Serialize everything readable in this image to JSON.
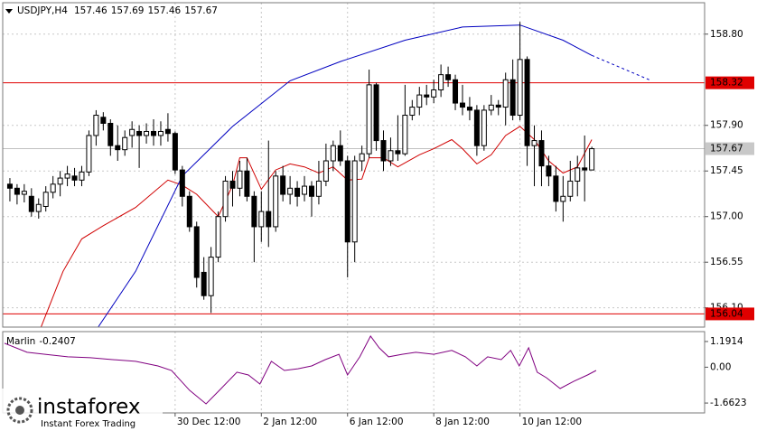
{
  "chart_data": {
    "type": "candlestick",
    "symbol": "USDJPY,H4",
    "candles": [
      {
        "o": 157.32,
        "h": 157.38,
        "l": 157.15,
        "c": 157.28
      },
      {
        "o": 157.28,
        "h": 157.32,
        "l": 157.12,
        "c": 157.22
      },
      {
        "o": 157.22,
        "h": 157.32,
        "l": 157.14,
        "c": 157.25
      },
      {
        "o": 157.2,
        "h": 157.28,
        "l": 157.0,
        "c": 157.05
      },
      {
        "o": 157.05,
        "h": 157.18,
        "l": 156.98,
        "c": 157.12
      },
      {
        "o": 157.1,
        "h": 157.3,
        "l": 157.05,
        "c": 157.24
      },
      {
        "o": 157.24,
        "h": 157.4,
        "l": 157.18,
        "c": 157.32
      },
      {
        "o": 157.32,
        "h": 157.45,
        "l": 157.2,
        "c": 157.38
      },
      {
        "o": 157.38,
        "h": 157.5,
        "l": 157.3,
        "c": 157.42
      },
      {
        "o": 157.4,
        "h": 157.48,
        "l": 157.3,
        "c": 157.36
      },
      {
        "o": 157.36,
        "h": 157.5,
        "l": 157.3,
        "c": 157.44
      },
      {
        "o": 157.44,
        "h": 157.85,
        "l": 157.4,
        "c": 157.8
      },
      {
        "o": 157.8,
        "h": 158.05,
        "l": 157.7,
        "c": 158.0
      },
      {
        "o": 157.98,
        "h": 158.03,
        "l": 157.85,
        "c": 157.92
      },
      {
        "o": 157.92,
        "h": 157.96,
        "l": 157.6,
        "c": 157.7
      },
      {
        "o": 157.7,
        "h": 157.9,
        "l": 157.55,
        "c": 157.66
      },
      {
        "o": 157.66,
        "h": 157.85,
        "l": 157.6,
        "c": 157.78
      },
      {
        "o": 157.8,
        "h": 157.94,
        "l": 157.68,
        "c": 157.86
      },
      {
        "o": 157.84,
        "h": 157.9,
        "l": 157.48,
        "c": 157.8
      },
      {
        "o": 157.8,
        "h": 157.92,
        "l": 157.72,
        "c": 157.84
      },
      {
        "o": 157.84,
        "h": 157.96,
        "l": 157.7,
        "c": 157.8
      },
      {
        "o": 157.8,
        "h": 157.94,
        "l": 157.7,
        "c": 157.84
      },
      {
        "o": 157.86,
        "h": 158.02,
        "l": 157.74,
        "c": 157.82
      },
      {
        "o": 157.82,
        "h": 157.84,
        "l": 157.42,
        "c": 157.46
      },
      {
        "o": 157.46,
        "h": 157.5,
        "l": 157.1,
        "c": 157.2
      },
      {
        "o": 157.2,
        "h": 157.25,
        "l": 156.85,
        "c": 156.9
      },
      {
        "o": 156.9,
        "h": 156.95,
        "l": 156.3,
        "c": 156.4
      },
      {
        "o": 156.45,
        "h": 156.6,
        "l": 156.18,
        "c": 156.22
      },
      {
        "o": 156.22,
        "h": 156.7,
        "l": 156.05,
        "c": 156.6
      },
      {
        "o": 156.6,
        "h": 157.05,
        "l": 156.55,
        "c": 157.0
      },
      {
        "o": 157.0,
        "h": 157.4,
        "l": 156.95,
        "c": 157.35
      },
      {
        "o": 157.35,
        "h": 157.45,
        "l": 157.1,
        "c": 157.28
      },
      {
        "o": 157.28,
        "h": 157.55,
        "l": 157.2,
        "c": 157.45
      },
      {
        "o": 157.45,
        "h": 157.58,
        "l": 157.15,
        "c": 157.2
      },
      {
        "o": 157.2,
        "h": 157.25,
        "l": 156.55,
        "c": 156.9
      },
      {
        "o": 156.9,
        "h": 157.25,
        "l": 156.75,
        "c": 157.05
      },
      {
        "o": 157.05,
        "h": 157.75,
        "l": 156.7,
        "c": 156.9
      },
      {
        "o": 156.9,
        "h": 157.45,
        "l": 156.85,
        "c": 157.4
      },
      {
        "o": 157.4,
        "h": 157.5,
        "l": 157.15,
        "c": 157.22
      },
      {
        "o": 157.22,
        "h": 157.4,
        "l": 157.12,
        "c": 157.28
      },
      {
        "o": 157.28,
        "h": 157.35,
        "l": 157.1,
        "c": 157.2
      },
      {
        "o": 157.22,
        "h": 157.4,
        "l": 157.15,
        "c": 157.3
      },
      {
        "o": 157.3,
        "h": 157.35,
        "l": 157.0,
        "c": 157.2
      },
      {
        "o": 157.2,
        "h": 157.55,
        "l": 157.12,
        "c": 157.35
      },
      {
        "o": 157.35,
        "h": 157.72,
        "l": 157.3,
        "c": 157.55
      },
      {
        "o": 157.55,
        "h": 157.75,
        "l": 157.45,
        "c": 157.7
      },
      {
        "o": 157.7,
        "h": 157.85,
        "l": 157.5,
        "c": 157.55
      },
      {
        "o": 157.55,
        "h": 157.6,
        "l": 156.4,
        "c": 156.75
      },
      {
        "o": 156.75,
        "h": 157.6,
        "l": 156.55,
        "c": 157.55
      },
      {
        "o": 157.55,
        "h": 157.7,
        "l": 157.45,
        "c": 157.62
      },
      {
        "o": 157.62,
        "h": 158.45,
        "l": 157.58,
        "c": 158.3
      },
      {
        "o": 158.3,
        "h": 158.32,
        "l": 157.65,
        "c": 157.75
      },
      {
        "o": 157.75,
        "h": 157.85,
        "l": 157.45,
        "c": 157.55
      },
      {
        "o": 157.55,
        "h": 157.78,
        "l": 157.5,
        "c": 157.65
      },
      {
        "o": 157.65,
        "h": 158.0,
        "l": 157.55,
        "c": 157.62
      },
      {
        "o": 157.62,
        "h": 158.3,
        "l": 157.6,
        "c": 158.0
      },
      {
        "o": 158.0,
        "h": 158.15,
        "l": 157.95,
        "c": 158.08
      },
      {
        "o": 158.08,
        "h": 158.28,
        "l": 158.0,
        "c": 158.2
      },
      {
        "o": 158.2,
        "h": 158.3,
        "l": 158.1,
        "c": 158.18
      },
      {
        "o": 158.18,
        "h": 158.35,
        "l": 158.12,
        "c": 158.25
      },
      {
        "o": 158.25,
        "h": 158.5,
        "l": 158.18,
        "c": 158.4
      },
      {
        "o": 158.4,
        "h": 158.48,
        "l": 158.28,
        "c": 158.35
      },
      {
        "o": 158.35,
        "h": 158.4,
        "l": 158.05,
        "c": 158.12
      },
      {
        "o": 158.12,
        "h": 158.3,
        "l": 158.0,
        "c": 158.08
      },
      {
        "o": 158.08,
        "h": 158.18,
        "l": 157.95,
        "c": 158.05
      },
      {
        "o": 158.05,
        "h": 158.1,
        "l": 157.6,
        "c": 157.7
      },
      {
        "o": 157.7,
        "h": 158.1,
        "l": 157.65,
        "c": 158.05
      },
      {
        "o": 158.05,
        "h": 158.2,
        "l": 158.0,
        "c": 158.1
      },
      {
        "o": 158.1,
        "h": 158.15,
        "l": 158.0,
        "c": 158.08
      },
      {
        "o": 158.08,
        "h": 158.42,
        "l": 157.9,
        "c": 158.35
      },
      {
        "o": 158.35,
        "h": 158.55,
        "l": 157.95,
        "c": 158.0
      },
      {
        "o": 158.0,
        "h": 158.92,
        "l": 157.95,
        "c": 158.55
      },
      {
        "o": 158.55,
        "h": 158.58,
        "l": 157.5,
        "c": 157.7
      },
      {
        "o": 157.7,
        "h": 157.9,
        "l": 157.3,
        "c": 157.75
      },
      {
        "o": 157.75,
        "h": 157.85,
        "l": 157.3,
        "c": 157.5
      },
      {
        "o": 157.5,
        "h": 157.6,
        "l": 157.3,
        "c": 157.4
      },
      {
        "o": 157.4,
        "h": 157.5,
        "l": 157.05,
        "c": 157.15
      },
      {
        "o": 157.15,
        "h": 157.4,
        "l": 156.95,
        "c": 157.2
      },
      {
        "o": 157.2,
        "h": 157.55,
        "l": 157.15,
        "c": 157.35
      },
      {
        "o": 157.35,
        "h": 157.6,
        "l": 157.2,
        "c": 157.48
      },
      {
        "o": 157.48,
        "h": 157.8,
        "l": 157.15,
        "c": 157.46
      },
      {
        "o": 157.46,
        "h": 157.69,
        "l": 157.46,
        "c": 157.67
      }
    ],
    "bull_color": "#ffffff",
    "bear_color": "#000000",
    "ylim": [
      155.91,
      159.11
    ],
    "yticks": [
      {
        "value": 158.8,
        "label": "158.80"
      },
      {
        "value": 157.9,
        "label": "157.90"
      },
      157.45,
      {
        "value": 157,
        "label": "157.00"
      },
      156.55,
      {
        "value": 156.1,
        "label": "156.10"
      }
    ],
    "xlim": [
      -1,
      96.7
    ],
    "xticks": [
      {
        "value": 23,
        "label": "30 Dec 12:00"
      },
      {
        "value": 35,
        "label": "2 Jan 12:00"
      },
      {
        "value": 47,
        "label": "6 Jan 12:00"
      },
      {
        "value": 59,
        "label": "8 Jan 12:00"
      },
      {
        "value": 71,
        "label": "10 Jan 12:00"
      }
    ],
    "grid": true,
    "levels": [
      {
        "value": 158.32,
        "color": "#e00000"
      },
      {
        "value": 156.04,
        "color": "#e00000"
      }
    ],
    "lines": [
      {
        "color": "#d00000",
        "x": [
          4,
          7.4,
          10,
          13,
          17.5,
          22,
          24,
          26,
          29,
          31,
          32,
          33,
          35,
          37,
          39,
          41,
          43,
          45,
          47,
          49,
          50,
          52,
          54,
          57,
          59,
          61.5,
          63,
          65,
          67,
          69,
          71,
          73,
          75,
          77,
          79,
          81
        ],
        "values": [
          155.85,
          156.46,
          156.78,
          156.91,
          157.09,
          157.36,
          157.31,
          157.22,
          157.0,
          157.31,
          157.58,
          157.58,
          157.27,
          157.46,
          157.52,
          157.49,
          157.43,
          157.49,
          157.36,
          157.37,
          157.58,
          157.58,
          157.49,
          157.61,
          157.67,
          157.76,
          157.67,
          157.52,
          157.61,
          157.8,
          157.89,
          157.76,
          157.55,
          157.43,
          157.49,
          157.76
        ]
      },
      {
        "color": "#0000c0",
        "x": [
          12,
          17.5,
          24,
          31,
          39,
          46,
          55,
          63,
          71,
          77,
          81
        ],
        "values": [
          155.88,
          156.46,
          157.4,
          157.89,
          158.34,
          158.53,
          158.74,
          158.87,
          158.89,
          158.74,
          158.59
        ]
      },
      {
        "color": "#0000c0",
        "dash": true,
        "x": [
          81,
          89
        ],
        "values": [
          158.59,
          158.35
        ]
      }
    ],
    "indicator": {
      "name": "Marlin",
      "value": -0.2407,
      "color": "#800080",
      "ylim": [
        -2.12,
        1.65
      ],
      "yticks": [
        1.1914,
        {
          "value": 0,
          "label": "0.00"
        },
        -1.6623
      ],
      "x": [
        -0.75,
        2.4,
        4.9,
        8.05,
        11.2,
        14.3,
        17.5,
        20.6,
        22.5,
        25,
        27.3,
        29.4,
        31.6,
        33.2,
        34.8,
        36.4,
        38.2,
        40.1,
        42,
        43.9,
        45.8,
        47,
        48.7,
        50.2,
        51.4,
        52.7,
        54.6,
        56.5,
        59,
        61.5,
        63.4,
        65,
        66.5,
        68.4,
        69.7,
        70.9,
        72.2,
        73.4,
        74.7,
        76.6,
        78.5,
        80.4,
        81.6
      ],
      "values": [
        1.11,
        0.69,
        0.6,
        0.48,
        0.44,
        0.35,
        0.27,
        0.06,
        -0.15,
        -1.07,
        -1.7,
        -0.99,
        -0.23,
        -0.36,
        -0.78,
        0.27,
        -0.15,
        -0.07,
        0.06,
        0.35,
        0.6,
        -0.36,
        0.48,
        1.44,
        0.9,
        0.48,
        0.6,
        0.69,
        0.6,
        0.78,
        0.48,
        0.06,
        0.48,
        0.35,
        0.78,
        0.06,
        0.9,
        -0.23,
        -0.49,
        -0.99,
        -0.65,
        -0.36,
        -0.15
      ]
    }
  },
  "watermark": {
    "brand": "instaforex",
    "tagline": "Instant Forex Trading"
  }
}
